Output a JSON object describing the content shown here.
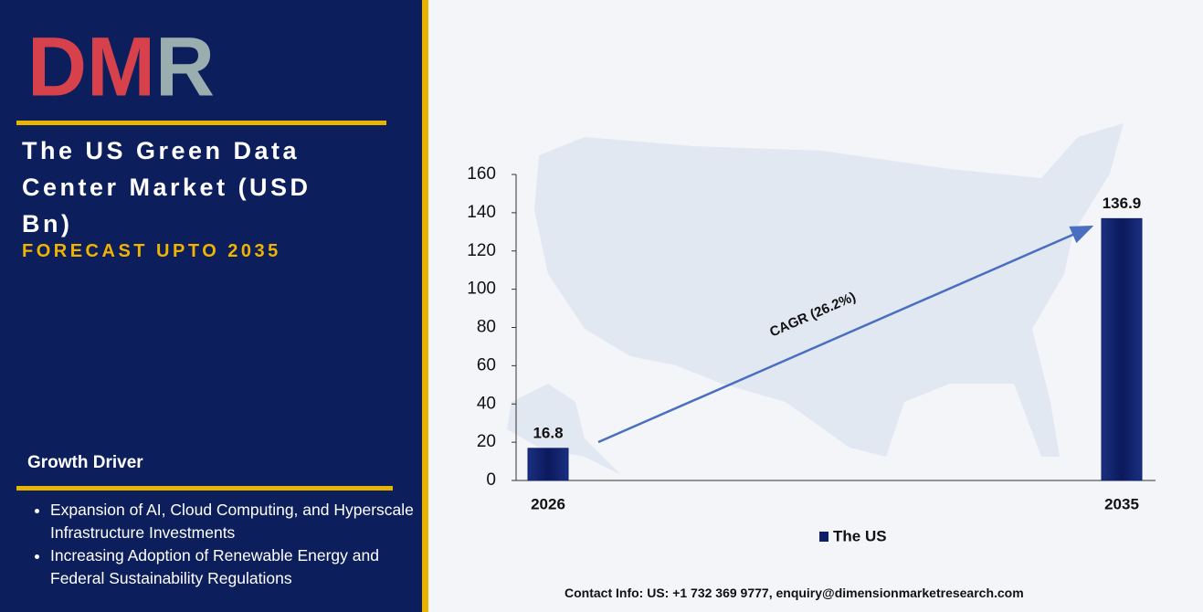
{
  "logo": "DMR",
  "title": "The US Green Data Center Market (USD Bn)",
  "subtitle": "FORECAST UPTO 2035",
  "growth_driver": {
    "heading": "Growth Driver",
    "items": [
      "Expansion of AI, Cloud Computing, and Hyperscale Infrastructure Investments",
      "Increasing Adoption of Renewable Energy and Federal Sustainability Regulations"
    ]
  },
  "contact": "Contact Info: US: +1 732 369 9777, enquiry@dimensionmarketresearch.com",
  "chart_data": {
    "type": "bar",
    "categories": [
      "2026",
      "2035"
    ],
    "series": [
      {
        "name": "The US",
        "color": "#0d1f6b",
        "values": [
          16.8,
          136.9
        ]
      }
    ],
    "ylim": [
      0,
      160
    ],
    "yticks": [
      0,
      20,
      40,
      60,
      80,
      100,
      120,
      140,
      160
    ],
    "annotation": "CAGR (26.2%)"
  }
}
